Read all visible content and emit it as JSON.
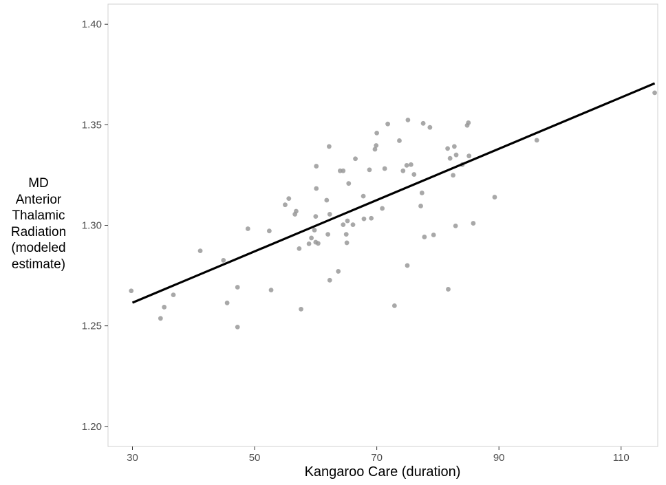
{
  "chart_data": {
    "type": "scatter",
    "title": "",
    "xlabel": "Kangaroo Care (duration)",
    "ylabel_lines": [
      "MD",
      "Anterior",
      "Thalamic",
      "Radiation",
      "(modeled",
      "estimate)"
    ],
    "xlim": [
      26,
      116
    ],
    "ylim": [
      1.19,
      1.41
    ],
    "x_ticks": [
      30,
      50,
      70,
      90,
      110
    ],
    "x_tick_labels": [
      "30",
      "50",
      "70",
      "90",
      "110"
    ],
    "y_ticks": [
      1.2,
      1.25,
      1.3,
      1.35,
      1.4
    ],
    "y_tick_labels": [
      "1.20",
      "1.25",
      "1.30",
      "1.35",
      "1.40"
    ],
    "grid": false,
    "legend": "none",
    "point_color": "#999999",
    "line_color": "#000000",
    "fit_line": {
      "x": [
        30,
        115.5
      ],
      "y": [
        1.2615,
        1.3706
      ]
    },
    "points": [
      {
        "x": 29.8,
        "y": 1.2674
      },
      {
        "x": 34.6,
        "y": 1.2537
      },
      {
        "x": 35.2,
        "y": 1.2593
      },
      {
        "x": 36.7,
        "y": 1.2654
      },
      {
        "x": 41.1,
        "y": 1.2873
      },
      {
        "x": 44.9,
        "y": 1.2826
      },
      {
        "x": 45.5,
        "y": 1.2614
      },
      {
        "x": 47.2,
        "y": 1.2692
      },
      {
        "x": 47.2,
        "y": 1.2494
      },
      {
        "x": 48.9,
        "y": 1.2983
      },
      {
        "x": 52.4,
        "y": 1.2972
      },
      {
        "x": 52.7,
        "y": 1.2678
      },
      {
        "x": 55.0,
        "y": 1.3102
      },
      {
        "x": 55.6,
        "y": 1.3133
      },
      {
        "x": 56.6,
        "y": 1.3055
      },
      {
        "x": 56.8,
        "y": 1.307
      },
      {
        "x": 57.3,
        "y": 1.2884
      },
      {
        "x": 57.6,
        "y": 1.2583
      },
      {
        "x": 58.9,
        "y": 1.2908
      },
      {
        "x": 59.3,
        "y": 1.2937
      },
      {
        "x": 59.8,
        "y": 1.2976
      },
      {
        "x": 60.0,
        "y": 1.3044
      },
      {
        "x": 60.0,
        "y": 1.2916
      },
      {
        "x": 60.1,
        "y": 1.3183
      },
      {
        "x": 60.1,
        "y": 1.3294
      },
      {
        "x": 60.4,
        "y": 1.291
      },
      {
        "x": 61.8,
        "y": 1.3125
      },
      {
        "x": 62.0,
        "y": 1.2955
      },
      {
        "x": 62.2,
        "y": 1.3392
      },
      {
        "x": 62.3,
        "y": 1.2727
      },
      {
        "x": 62.3,
        "y": 1.3055
      },
      {
        "x": 63.7,
        "y": 1.2771
      },
      {
        "x": 64.0,
        "y": 1.3271
      },
      {
        "x": 64.5,
        "y": 1.3271
      },
      {
        "x": 64.5,
        "y": 1.3003
      },
      {
        "x": 65.0,
        "y": 1.2955
      },
      {
        "x": 65.1,
        "y": 1.2913
      },
      {
        "x": 65.2,
        "y": 1.3022
      },
      {
        "x": 65.4,
        "y": 1.3208
      },
      {
        "x": 66.1,
        "y": 1.3003
      },
      {
        "x": 66.5,
        "y": 1.3331
      },
      {
        "x": 67.8,
        "y": 1.3145
      },
      {
        "x": 67.9,
        "y": 1.3032
      },
      {
        "x": 68.8,
        "y": 1.3276
      },
      {
        "x": 69.1,
        "y": 1.3035
      },
      {
        "x": 69.7,
        "y": 1.3378
      },
      {
        "x": 69.9,
        "y": 1.3397
      },
      {
        "x": 70.0,
        "y": 1.3459
      },
      {
        "x": 70.9,
        "y": 1.3084
      },
      {
        "x": 71.3,
        "y": 1.3282
      },
      {
        "x": 71.8,
        "y": 1.3504
      },
      {
        "x": 72.9,
        "y": 1.26
      },
      {
        "x": 73.7,
        "y": 1.3421
      },
      {
        "x": 74.3,
        "y": 1.3271
      },
      {
        "x": 74.9,
        "y": 1.3298
      },
      {
        "x": 75.0,
        "y": 1.28
      },
      {
        "x": 75.1,
        "y": 1.3524
      },
      {
        "x": 75.6,
        "y": 1.3302
      },
      {
        "x": 76.1,
        "y": 1.3253
      },
      {
        "x": 77.2,
        "y": 1.3096
      },
      {
        "x": 77.4,
        "y": 1.3161
      },
      {
        "x": 77.6,
        "y": 1.3507
      },
      {
        "x": 77.8,
        "y": 1.2942
      },
      {
        "x": 78.7,
        "y": 1.3487
      },
      {
        "x": 79.3,
        "y": 1.2952
      },
      {
        "x": 81.6,
        "y": 1.3382
      },
      {
        "x": 81.7,
        "y": 1.2682
      },
      {
        "x": 82.0,
        "y": 1.3333
      },
      {
        "x": 82.5,
        "y": 1.3249
      },
      {
        "x": 82.7,
        "y": 1.3392
      },
      {
        "x": 82.9,
        "y": 1.2997
      },
      {
        "x": 83.0,
        "y": 1.335
      },
      {
        "x": 84.0,
        "y": 1.3302
      },
      {
        "x": 84.8,
        "y": 1.3497
      },
      {
        "x": 85.0,
        "y": 1.351
      },
      {
        "x": 85.1,
        "y": 1.3345
      },
      {
        "x": 85.8,
        "y": 1.301
      },
      {
        "x": 89.3,
        "y": 1.314
      },
      {
        "x": 96.2,
        "y": 1.3423
      },
      {
        "x": 115.5,
        "y": 1.3659
      }
    ]
  }
}
